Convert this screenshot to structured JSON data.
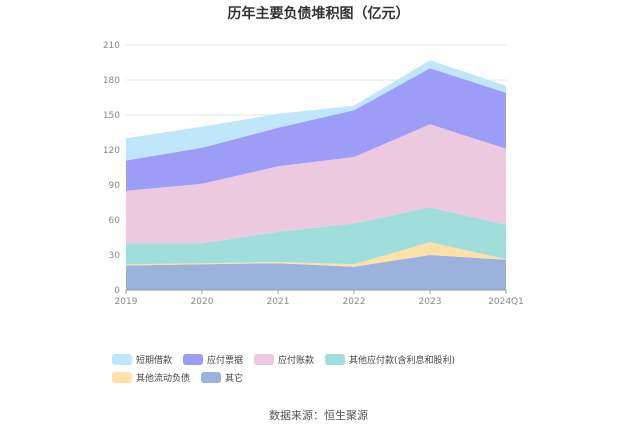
{
  "title": "历年主要负债堆积图（亿元）",
  "source": "数据来源：恒生聚源",
  "chart_data": {
    "type": "area",
    "stacked": true,
    "categories": [
      "2019",
      "2020",
      "2021",
      "2022",
      "2023",
      "2024Q1"
    ],
    "ylim": [
      0,
      210
    ],
    "yticks": [
      0,
      30,
      60,
      90,
      120,
      150,
      180,
      210
    ],
    "grid": true,
    "legend_position": "bottom",
    "series": [
      {
        "name": "其它",
        "color": "#9bb3dc",
        "values": [
          21,
          22,
          23,
          20,
          30,
          26
        ]
      },
      {
        "name": "其他流动负债",
        "color": "#ffe0a6",
        "values": [
          1,
          1,
          1,
          2,
          11,
          0.5
        ]
      },
      {
        "name": "其他应付款(含利息和股利)",
        "color": "#a0dedc",
        "values": [
          18,
          17,
          26,
          35,
          30,
          29.5
        ]
      },
      {
        "name": "应付账款",
        "color": "#edc9e0",
        "values": [
          45,
          51,
          56,
          57,
          71,
          65
        ]
      },
      {
        "name": "应付票据",
        "color": "#9d9cf7",
        "values": [
          26,
          31,
          33,
          40,
          48,
          48
        ]
      },
      {
        "name": "短期借款",
        "color": "#bfe6fb",
        "values": [
          19,
          18,
          12,
          4,
          7,
          6
        ]
      }
    ]
  }
}
